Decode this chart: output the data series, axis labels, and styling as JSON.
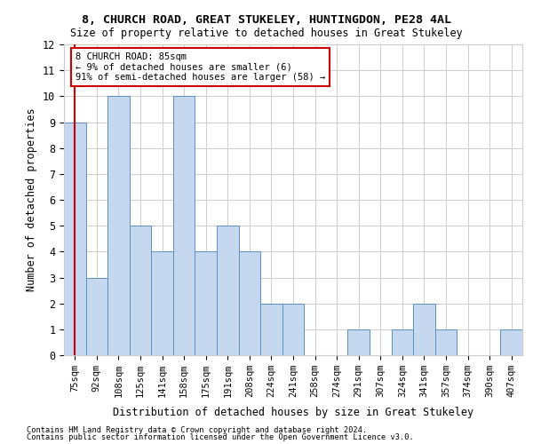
{
  "title_line1": "8, CHURCH ROAD, GREAT STUKELEY, HUNTINGDON, PE28 4AL",
  "title_line2": "Size of property relative to detached houses in Great Stukeley",
  "xlabel": "Distribution of detached houses by size in Great Stukeley",
  "ylabel": "Number of detached properties",
  "footnote1": "Contains HM Land Registry data © Crown copyright and database right 2024.",
  "footnote2": "Contains public sector information licensed under the Open Government Licence v3.0.",
  "categories": [
    "75sqm",
    "92sqm",
    "108sqm",
    "125sqm",
    "141sqm",
    "158sqm",
    "175sqm",
    "191sqm",
    "208sqm",
    "224sqm",
    "241sqm",
    "258sqm",
    "274sqm",
    "291sqm",
    "307sqm",
    "324sqm",
    "341sqm",
    "357sqm",
    "374sqm",
    "390sqm",
    "407sqm"
  ],
  "values": [
    9,
    3,
    10,
    5,
    4,
    10,
    4,
    5,
    4,
    2,
    2,
    0,
    0,
    1,
    0,
    1,
    2,
    1,
    0,
    0,
    1
  ],
  "bar_color": "#c5d8f0",
  "bar_edge_color": "#5a8fc0",
  "highlight_line_color": "#cc0000",
  "ylim": [
    0,
    12
  ],
  "yticks": [
    0,
    1,
    2,
    3,
    4,
    5,
    6,
    7,
    8,
    9,
    10,
    11,
    12
  ],
  "annotation_text": "8 CHURCH ROAD: 85sqm\n← 9% of detached houses are smaller (6)\n91% of semi-detached houses are larger (58) →",
  "bg_color": "#ffffff",
  "grid_color": "#cccccc"
}
